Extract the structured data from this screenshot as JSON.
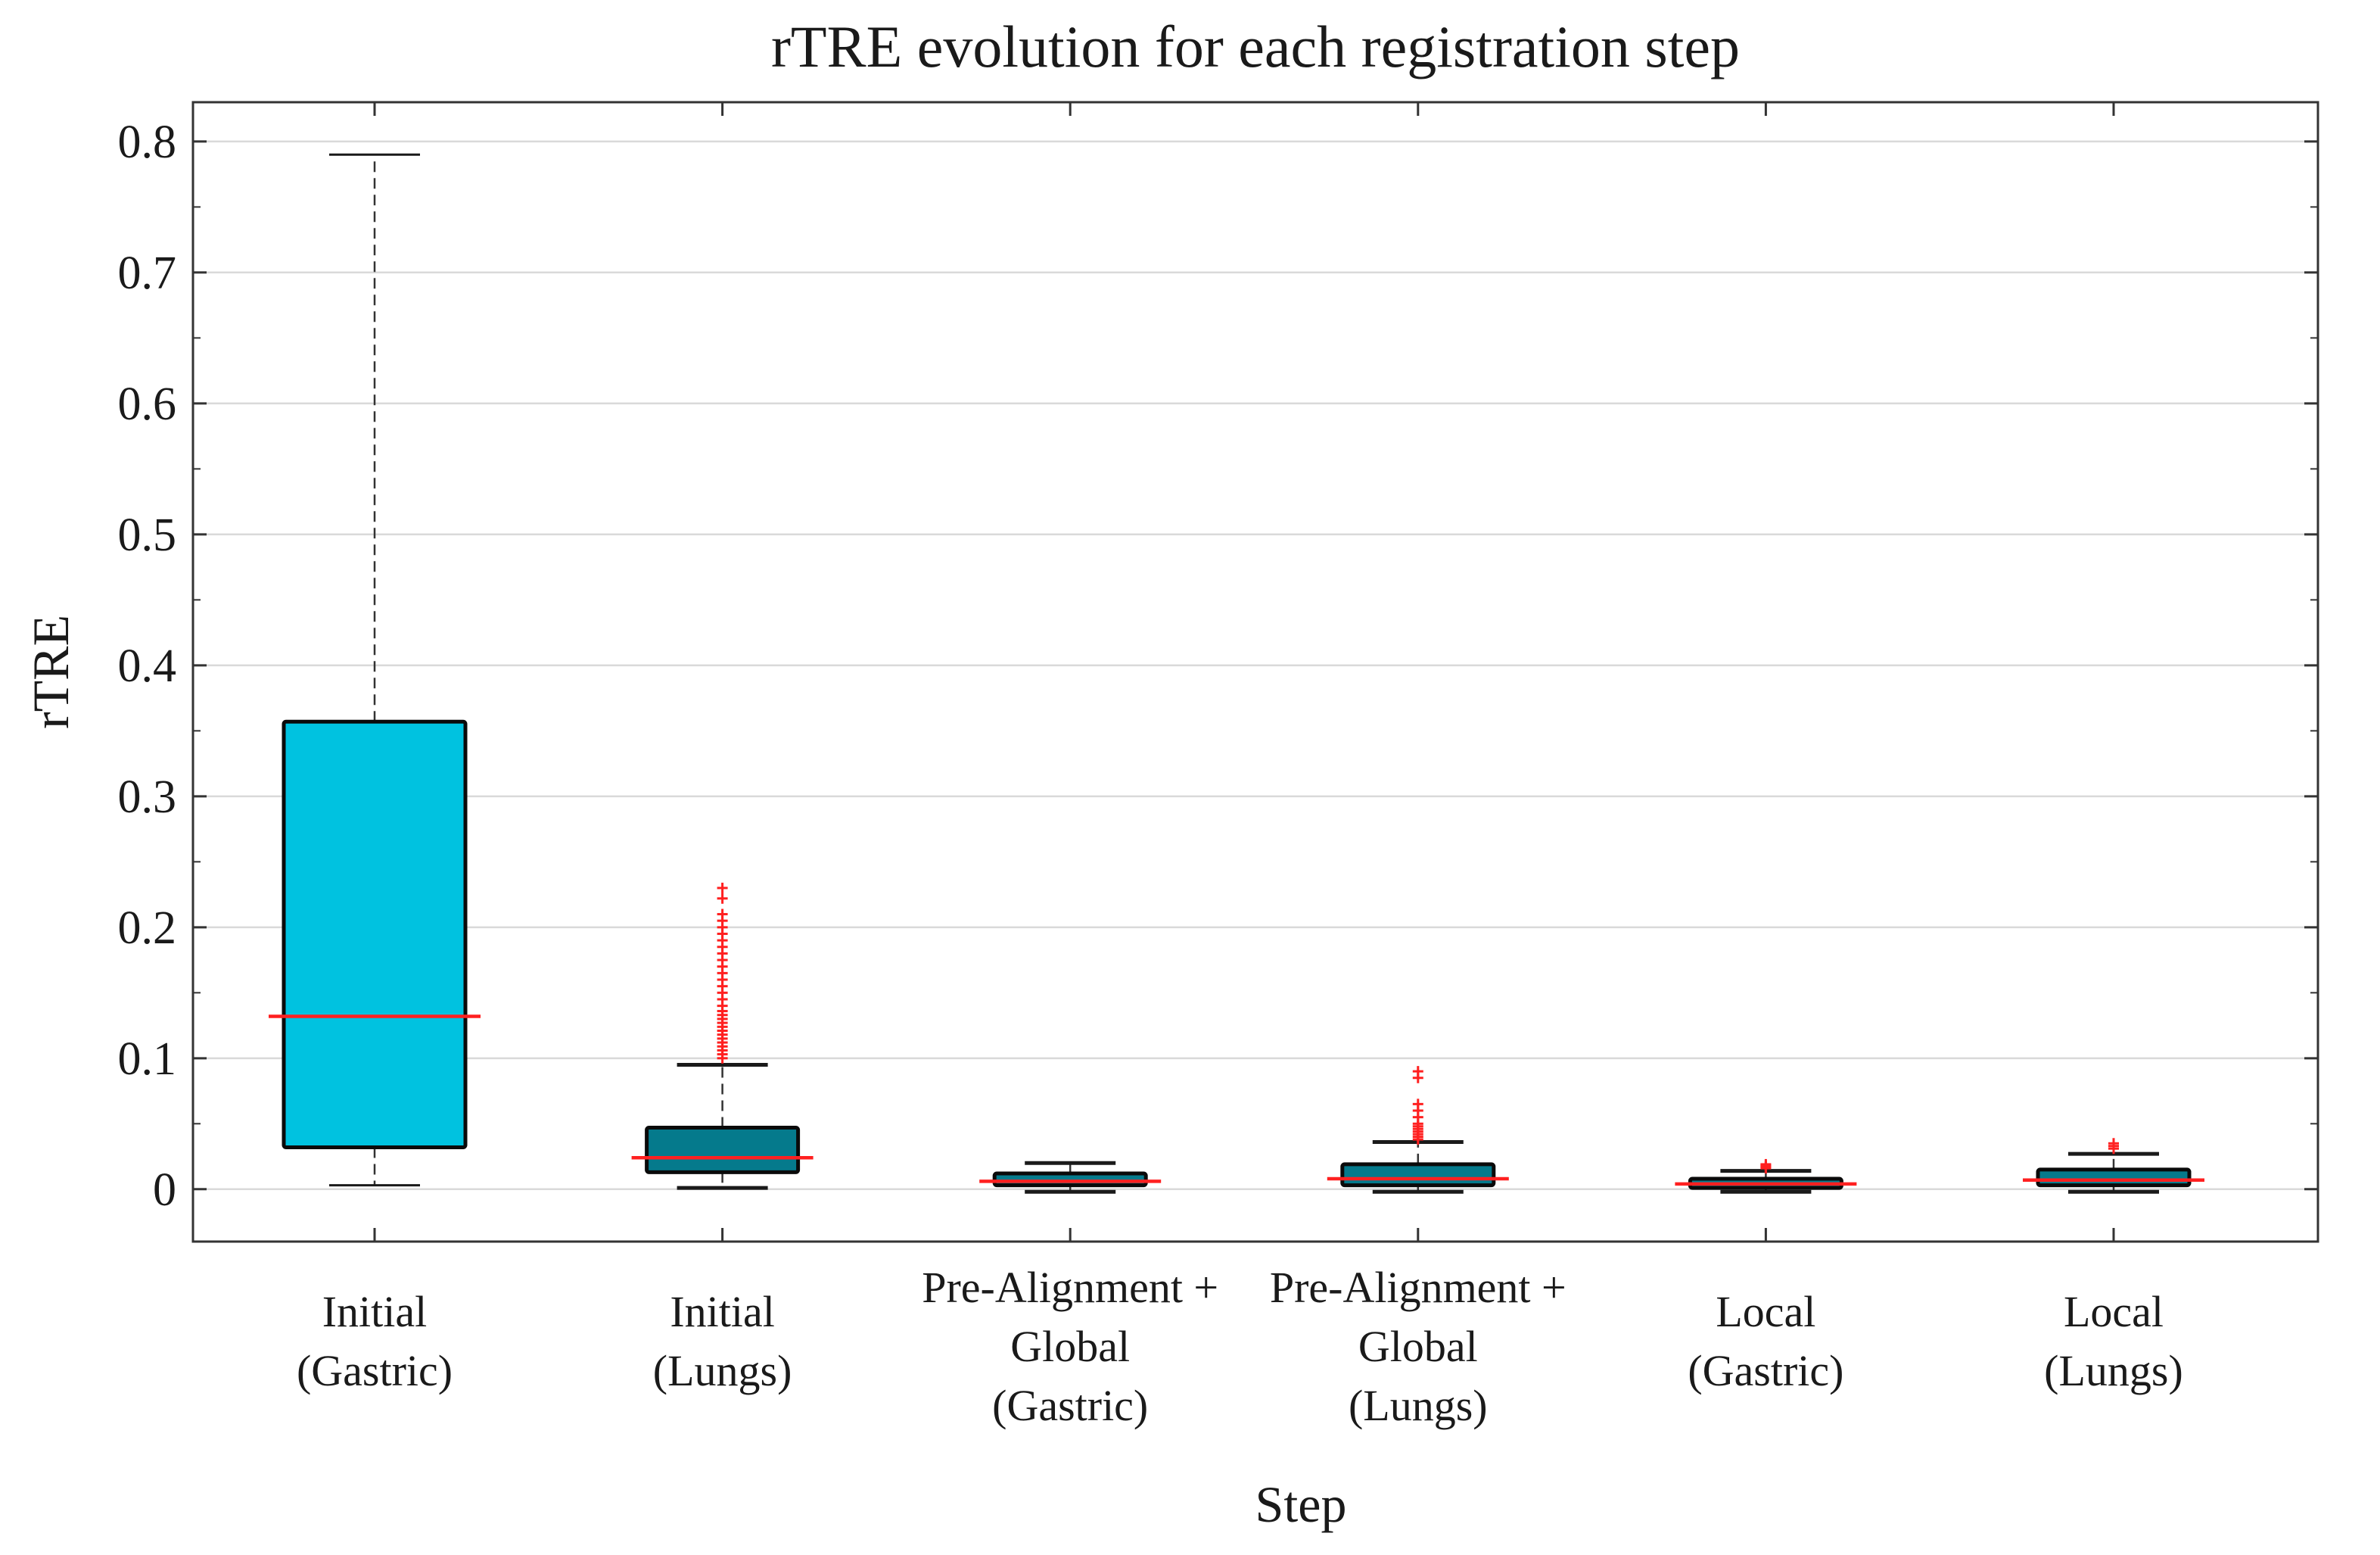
{
  "chart_data": {
    "type": "box",
    "title": "rTRE evolution for each registration step",
    "xlabel": "Step",
    "ylabel": "rTRE",
    "ylim": [
      -0.04,
      0.83
    ],
    "yticks": [
      0,
      0.1,
      0.2,
      0.3,
      0.4,
      0.5,
      0.6,
      0.7,
      0.8
    ],
    "ytick_labels": [
      "0",
      "0.1",
      "0.2",
      "0.3",
      "0.4",
      "0.5",
      "0.6",
      "0.7",
      "0.8"
    ],
    "grid": true,
    "colors": {
      "box_light": "#00c2e0",
      "box_dark": "#057a8c",
      "median": "#ff2020",
      "outlier": "#ff2020",
      "grid": "#d9d9d9",
      "axis": "#333333"
    },
    "categories": [
      {
        "label_lines": [
          "Initial",
          "(Gastric)"
        ],
        "min": 0.003,
        "q1": 0.032,
        "median": 0.132,
        "q3": 0.357,
        "max": 0.79,
        "color": "#00c2e0",
        "outliers": []
      },
      {
        "label_lines": [
          "Initial",
          "(Lungs)"
        ],
        "min": 0.001,
        "q1": 0.013,
        "median": 0.024,
        "q3": 0.047,
        "max": 0.095,
        "color": "#057a8c",
        "outliers": [
          0.1,
          0.103,
          0.106,
          0.109,
          0.112,
          0.115,
          0.118,
          0.121,
          0.124,
          0.127,
          0.13,
          0.133,
          0.136,
          0.14,
          0.145,
          0.15,
          0.155,
          0.16,
          0.165,
          0.17,
          0.175,
          0.18,
          0.185,
          0.19,
          0.195,
          0.2,
          0.205,
          0.21,
          0.222,
          0.23
        ]
      },
      {
        "label_lines": [
          "Pre-Alignment +",
          "Global",
          "(Gastric)"
        ],
        "min": -0.002,
        "q1": 0.003,
        "median": 0.006,
        "q3": 0.012,
        "max": 0.02,
        "color": "#057a8c",
        "outliers": []
      },
      {
        "label_lines": [
          "Pre-Alignment +",
          "Global",
          "(Lungs)"
        ],
        "min": -0.002,
        "q1": 0.003,
        "median": 0.008,
        "q3": 0.019,
        "max": 0.036,
        "color": "#057a8c",
        "outliers": [
          0.038,
          0.04,
          0.042,
          0.044,
          0.046,
          0.048,
          0.05,
          0.055,
          0.06,
          0.065,
          0.085,
          0.09
        ]
      },
      {
        "label_lines": [
          "Local",
          "(Gastric)"
        ],
        "min": -0.002,
        "q1": 0.001,
        "median": 0.004,
        "q3": 0.008,
        "max": 0.014,
        "color": "#057a8c",
        "outliers": [
          0.016,
          0.017,
          0.018,
          0.019
        ]
      },
      {
        "label_lines": [
          "Local",
          "(Lungs)"
        ],
        "min": -0.002,
        "q1": 0.003,
        "median": 0.007,
        "q3": 0.015,
        "max": 0.027,
        "color": "#057a8c",
        "outliers": [
          0.031,
          0.033,
          0.035
        ]
      }
    ]
  }
}
